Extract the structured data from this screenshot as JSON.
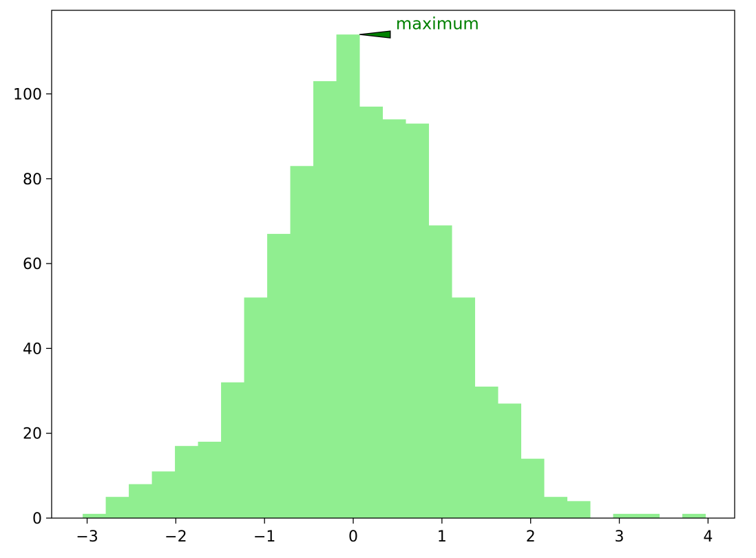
{
  "chart_data": {
    "type": "bar",
    "subtype": "histogram",
    "bin_edges": [
      -3.05,
      -2.79,
      -2.53,
      -2.27,
      -2.01,
      -1.75,
      -1.49,
      -1.23,
      -0.97,
      -0.71,
      -0.45,
      -0.19,
      0.07,
      0.33,
      0.59,
      0.85,
      1.11,
      1.37,
      1.63,
      1.89,
      2.15,
      2.41,
      2.67,
      2.93,
      3.19,
      3.45,
      3.71,
      3.97
    ],
    "values": [
      1,
      5,
      8,
      11,
      17,
      18,
      32,
      52,
      67,
      83,
      103,
      114,
      97,
      94,
      93,
      69,
      52,
      31,
      27,
      14,
      5,
      4,
      0,
      1,
      1,
      0,
      1
    ],
    "xlim": [
      -3.4,
      4.3
    ],
    "ylim": [
      0,
      119.7
    ],
    "xticks": [
      -3,
      -2,
      -1,
      0,
      1,
      2,
      3,
      4
    ],
    "xtick_labels": [
      "−3",
      "−2",
      "−1",
      "0",
      "1",
      "2",
      "3",
      "4"
    ],
    "yticks": [
      0,
      20,
      40,
      60,
      80,
      100
    ],
    "ytick_labels": [
      "0",
      "20",
      "40",
      "60",
      "80",
      "100"
    ],
    "title": "",
    "xlabel": "",
    "ylabel": "",
    "grid": false,
    "bar_color": "#90ee90",
    "annotation": {
      "text": "maximum",
      "text_color": "#008000",
      "arrow_face_color": "#008000",
      "arrow_edge_color": "#000000",
      "point": [
        0.07,
        114
      ],
      "text_anchor": [
        0.48,
        116.5
      ]
    }
  }
}
